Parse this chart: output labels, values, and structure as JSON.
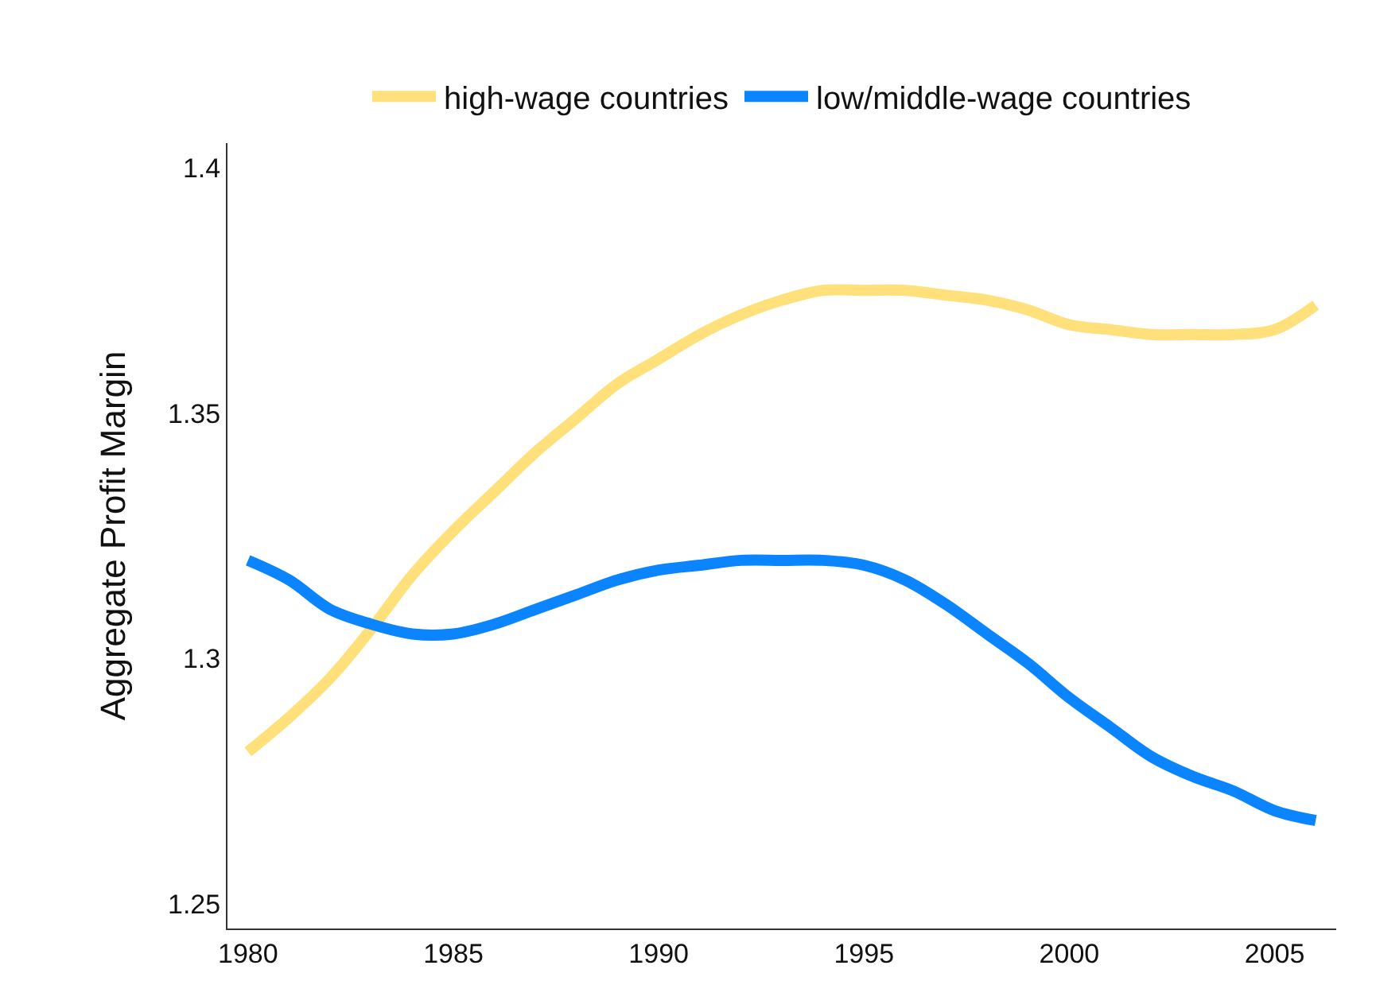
{
  "chart_data": {
    "type": "line",
    "ylabel": "Aggregate Profit Margin",
    "x": [
      1980,
      1981,
      1982,
      1983,
      1984,
      1985,
      1986,
      1987,
      1988,
      1989,
      1990,
      1991,
      1992,
      1993,
      1994,
      1995,
      1996,
      1997,
      1998,
      1999,
      2000,
      2001,
      2002,
      2003,
      2004,
      2005,
      2006
    ],
    "series": [
      {
        "name": "high-wage countries",
        "color": "#ffe07a",
        "values": [
          1.281,
          1.288,
          1.296,
          1.306,
          1.317,
          1.326,
          1.334,
          1.342,
          1.349,
          1.356,
          1.361,
          1.366,
          1.37,
          1.373,
          1.375,
          1.375,
          1.375,
          1.374,
          1.373,
          1.371,
          1.368,
          1.367,
          1.366,
          1.366,
          1.366,
          1.367,
          1.372
        ]
      },
      {
        "name": "low/middle-wage countries",
        "color": "#0a84ff",
        "values": [
          1.32,
          1.316,
          1.31,
          1.307,
          1.305,
          1.305,
          1.307,
          1.31,
          1.313,
          1.316,
          1.318,
          1.319,
          1.32,
          1.32,
          1.32,
          1.319,
          1.316,
          1.311,
          1.305,
          1.299,
          1.292,
          1.286,
          1.28,
          1.276,
          1.273,
          1.269,
          1.267
        ]
      }
    ],
    "xlim": [
      1979.5,
      2006.5
    ],
    "xticks": [
      1980,
      1985,
      1990,
      1995,
      2000,
      2005
    ],
    "ylim": [
      1.245,
      1.405
    ],
    "yticks": [
      1.25,
      1.3,
      1.35,
      1.4
    ],
    "grid": false,
    "legend": "top",
    "marker": "none",
    "line_style": "solid"
  }
}
